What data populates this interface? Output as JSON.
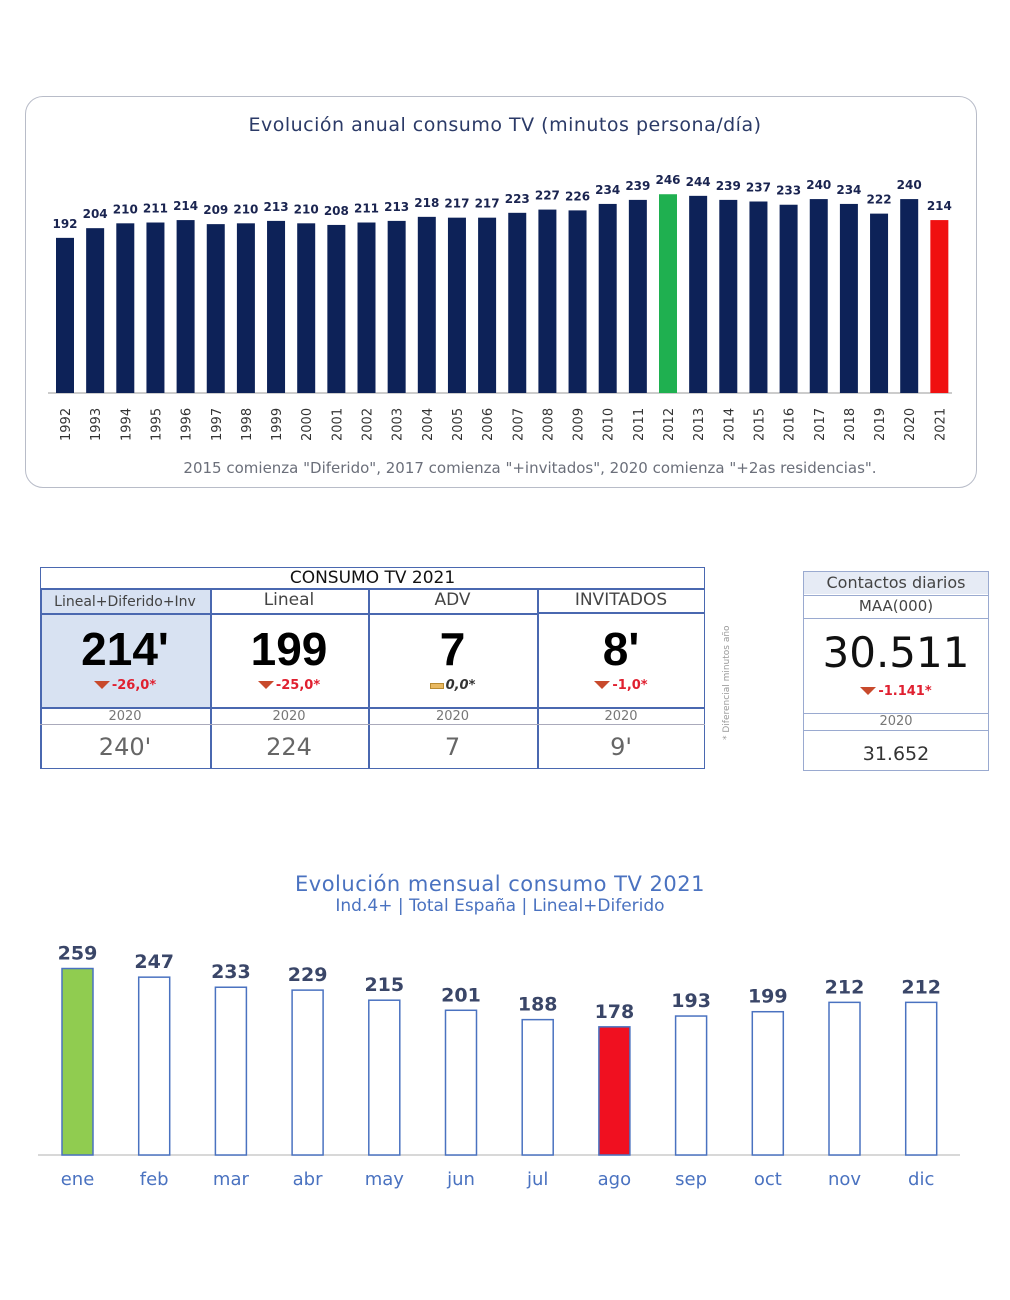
{
  "chart_data": [
    {
      "type": "bar",
      "title": "Evolución  anual consumo  TV (minutos  persona/día)",
      "categories": [
        "1992",
        "1993",
        "1994",
        "1995",
        "1996",
        "1997",
        "1998",
        "1999",
        "2000",
        "2001",
        "2002",
        "2003",
        "2004",
        "2005",
        "2006",
        "2007",
        "2008",
        "2009",
        "2010",
        "2011",
        "2012",
        "2013",
        "2014",
        "2015",
        "2016",
        "2017",
        "2018",
        "2019",
        "2020",
        "2021"
      ],
      "values": [
        192,
        204,
        210,
        211,
        214,
        209,
        210,
        213,
        210,
        208,
        211,
        213,
        218,
        217,
        217,
        223,
        227,
        226,
        234,
        239,
        246,
        244,
        239,
        237,
        233,
        240,
        234,
        222,
        240,
        214
      ],
      "note": "2015 comienza \"Diferido\", 2017 comienza \"+invitados\", 2020 comienza \"+2as residencias\".",
      "colors": {
        "default": "#0d2258",
        "max": "#1fb050",
        "current": "#f01010"
      },
      "highlight": {
        "max": "2012",
        "current": "2021"
      },
      "ylim": [
        0,
        260
      ]
    },
    {
      "type": "bar",
      "title": "Evolución mensual consumo TV 2021",
      "subtitle": "Ind.4+ | Total España | Lineal+Diferido",
      "categories": [
        "ene",
        "feb",
        "mar",
        "abr",
        "may",
        "jun",
        "jul",
        "ago",
        "sep",
        "oct",
        "nov",
        "dic"
      ],
      "values": [
        259,
        247,
        233,
        229,
        215,
        201,
        188,
        178,
        193,
        199,
        212,
        212
      ],
      "colors": {
        "default": "#ffffff",
        "outline": "#4a72c0",
        "max": "#90cc50",
        "min": "#f01020"
      },
      "highlight": {
        "max": "ene",
        "min": "ago"
      },
      "ylim": [
        0,
        270
      ]
    }
  ],
  "consumo": {
    "title": "CONSUMO TV 2021",
    "columns": [
      {
        "label": "Lineal+Diferido+Inv",
        "value": "214'",
        "delta": "-26,0*",
        "trend": "down",
        "prev_label": "2020",
        "prev": "240'"
      },
      {
        "label": "Lineal",
        "value": "199",
        "delta": "-25,0*",
        "trend": "down",
        "prev_label": "2020",
        "prev": "224"
      },
      {
        "label": "ADV",
        "value": "7",
        "delta": "0,0*",
        "trend": "flat",
        "prev_label": "2020",
        "prev": "7"
      },
      {
        "label": "INVITADOS",
        "value": "8'",
        "delta": "-1,0*",
        "trend": "down",
        "prev_label": "2020",
        "prev": "9'"
      }
    ],
    "footnote": "* Diferencial minutos año"
  },
  "contactos": {
    "title": "Contactos  diarios",
    "unit": "MAA(000)",
    "value": "30.511",
    "delta": "-1.141*",
    "prev_label": "2020",
    "prev": "31.652"
  }
}
